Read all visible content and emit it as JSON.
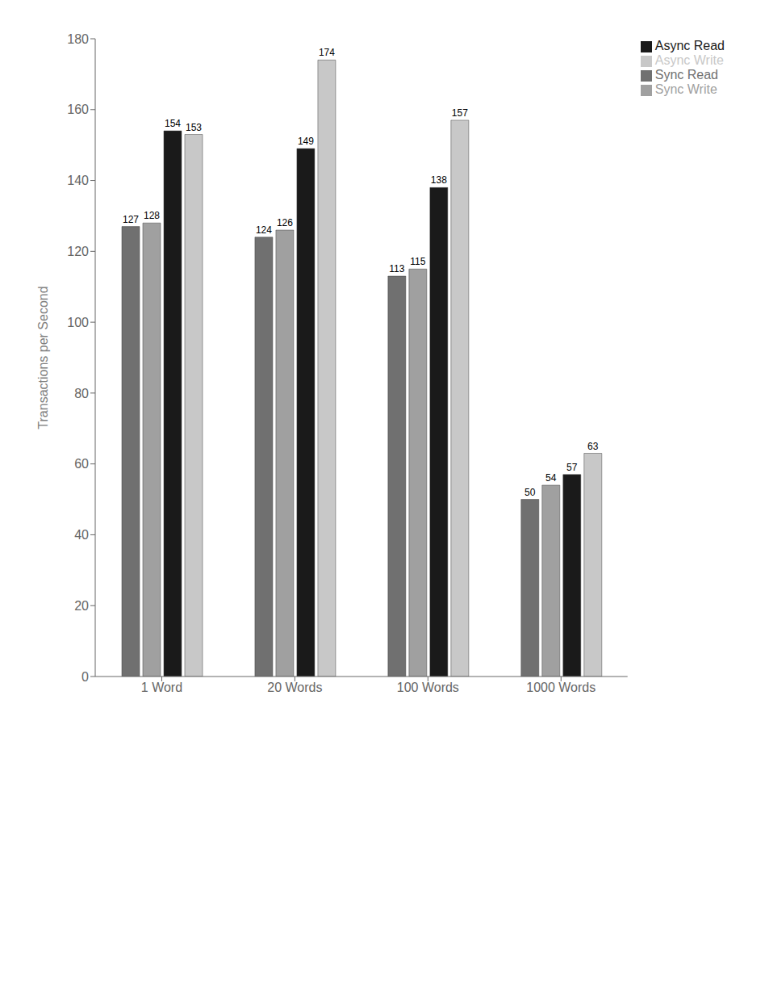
{
  "chart_data": {
    "type": "bar",
    "categories": [
      "1 Word",
      "20 Words",
      "100 Words",
      "1000 Words"
    ],
    "series": [
      {
        "name": "Sync Read",
        "color": "#707070",
        "values": [
          127,
          124,
          113,
          50
        ]
      },
      {
        "name": "Sync Write",
        "color": "#a0a0a0",
        "values": [
          128,
          126,
          115,
          54
        ]
      },
      {
        "name": "Async Read",
        "color": "#1a1a1a",
        "values": [
          154,
          149,
          138,
          57
        ]
      },
      {
        "name": "Async Write",
        "color": "#c8c8c8",
        "values": [
          153,
          174,
          157,
          63
        ]
      }
    ],
    "ylabel": "Transactions per Second",
    "ylim": [
      0,
      180
    ],
    "yticks": [
      0,
      20,
      40,
      60,
      80,
      100,
      120,
      140,
      160,
      180
    ],
    "grid": false,
    "legend": "upper right",
    "data_labels": true
  }
}
